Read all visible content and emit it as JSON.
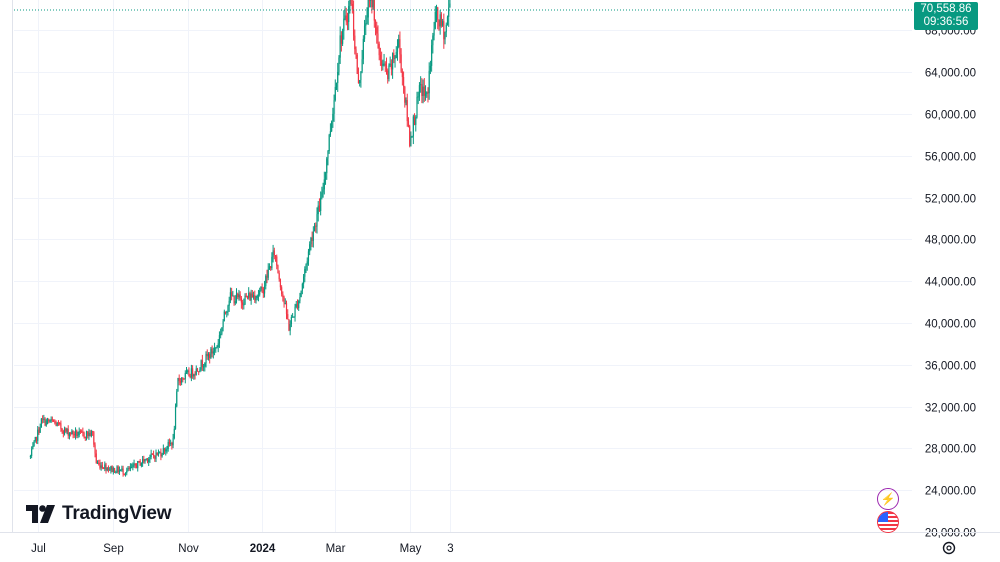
{
  "price_label": {
    "price": "70,558.86",
    "countdown": "09:36:56"
  },
  "brand": {
    "name": "TradingView"
  },
  "colors": {
    "up": "#089981",
    "down": "#f23645",
    "grid": "#f0f3fa",
    "axis_text": "#131722",
    "price_tag_bg": "#089981"
  },
  "icons": [
    "lightning-icon",
    "us-flag-icon",
    "settings-icon",
    "tradingview-logo-icon"
  ],
  "chart_data": {
    "type": "candlestick",
    "y_ticks": [
      "20,000.00",
      "24,000.00",
      "28,000.00",
      "32,000.00",
      "36,000.00",
      "40,000.00",
      "44,000.00",
      "48,000.00",
      "52,000.00",
      "56,000.00",
      "60,000.00",
      "64,000.00",
      "68,000.00"
    ],
    "x_ticks": [
      "Jul",
      "Sep",
      "Nov",
      "2024",
      "Mar",
      "May",
      "3"
    ],
    "ylim": [
      20000,
      70900
    ],
    "last_price": 70558.86,
    "grid": true,
    "approx_close_path": [
      [
        "2023-06-25",
        27200
      ],
      [
        "2023-07-04",
        30600
      ],
      [
        "2023-07-14",
        30500
      ],
      [
        "2023-07-24",
        29600
      ],
      [
        "2023-08-05",
        29300
      ],
      [
        "2023-08-15",
        29400
      ],
      [
        "2023-08-18",
        26600
      ],
      [
        "2023-08-31",
        26000
      ],
      [
        "2023-09-12",
        25800
      ],
      [
        "2023-09-28",
        27000
      ],
      [
        "2023-10-10",
        27600
      ],
      [
        "2023-10-20",
        28700
      ],
      [
        "2023-10-24",
        34500
      ],
      [
        "2023-11-08",
        35500
      ],
      [
        "2023-11-25",
        37800
      ],
      [
        "2023-12-05",
        42500
      ],
      [
        "2023-12-15",
        42200
      ],
      [
        "2024-01-01",
        43000
      ],
      [
        "2024-01-11",
        46800
      ],
      [
        "2024-01-23",
        39600
      ],
      [
        "2024-02-01",
        42600
      ],
      [
        "2024-02-10",
        48000
      ],
      [
        "2024-02-19",
        52000
      ],
      [
        "2024-02-29",
        61500
      ],
      [
        "2024-03-05",
        67000
      ],
      [
        "2024-03-14",
        71000
      ],
      [
        "2024-03-20",
        62500
      ],
      [
        "2024-03-27",
        70000
      ],
      [
        "2024-04-01",
        71000
      ],
      [
        "2024-04-05",
        66000
      ],
      [
        "2024-04-13",
        63500
      ],
      [
        "2024-04-22",
        66800
      ],
      [
        "2024-05-01",
        57500
      ],
      [
        "2024-05-10",
        62500
      ],
      [
        "2024-05-15",
        61500
      ],
      [
        "2024-05-22",
        69500
      ],
      [
        "2024-05-30",
        67800
      ],
      [
        "2024-06-03",
        70558
      ]
    ]
  }
}
